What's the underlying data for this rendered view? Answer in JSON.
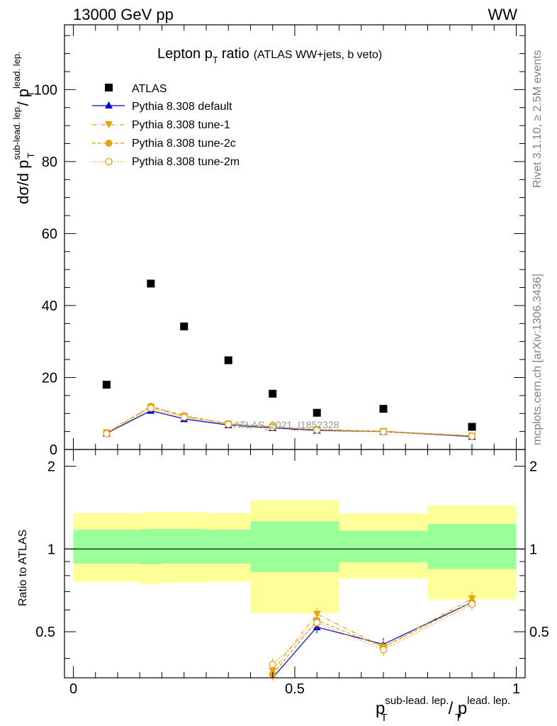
{
  "header": {
    "energy_label": "13000 GeV pp",
    "process_label": "WW"
  },
  "side_labels": {
    "rivet": "Rivet 3.1.10, ≥ 2.5M events",
    "mcplots": "mcplots.cern.ch [arXiv:1306.3436]"
  },
  "colors": {
    "atlas": "#000000",
    "default": "#0000cc",
    "tune_orange": "#e8a010",
    "band_outer": "#ffff99",
    "band_inner": "#99ff99",
    "watermark": "#999999"
  },
  "chart_data": [
    {
      "type": "scatter",
      "title": "Lepton p",
      "title_sub": "T",
      "title_suffix": "ratio",
      "title_note": "(ATLAS WW+jets, b veto)",
      "ylabel": "dσ/d p",
      "ylabel_sub": "T",
      "ylabel_sup": "sub-lead. lep.",
      "ylabel_tail": "/ p",
      "ylabel_tail_sub": "T",
      "ylabel_tail_sup": "lead. lep.",
      "xlim": [
        -0.02,
        1.02
      ],
      "ylim": [
        0,
        118
      ],
      "yticks": [
        0,
        20,
        40,
        60,
        80,
        100
      ],
      "grid": false,
      "legend_position": "top-left",
      "watermark": "ATLAS_2021_I1852328",
      "x": [
        0.075,
        0.175,
        0.25,
        0.35,
        0.45,
        0.55,
        0.7,
        0.9
      ],
      "series": [
        {
          "name": "ATLAS",
          "marker": "square",
          "values": [
            18.0,
            46.1,
            34.2,
            24.8,
            15.5,
            10.2,
            11.3,
            6.3
          ]
        },
        {
          "name": "Pythia 8.308 default",
          "marker": "triangle-up",
          "line": "solid",
          "values": [
            4.5,
            10.8,
            8.5,
            6.8,
            6.0,
            5.3,
            5.0,
            3.6
          ]
        },
        {
          "name": "Pythia 8.308 tune-1",
          "marker": "triangle-down",
          "line": "dashdot",
          "values": [
            4.7,
            11.8,
            9.2,
            7.1,
            6.3,
            5.6,
            5.1,
            3.8
          ]
        },
        {
          "name": "Pythia 8.308 tune-2c",
          "marker": "circle",
          "line": "dashed",
          "values": [
            4.6,
            12.0,
            9.4,
            7.2,
            6.4,
            5.5,
            5.0,
            3.8
          ]
        },
        {
          "name": "Pythia 8.308 tune-2m",
          "marker": "open-circle",
          "line": "dotted",
          "values": [
            4.4,
            11.5,
            9.0,
            7.0,
            6.2,
            5.4,
            4.9,
            3.7
          ]
        }
      ]
    },
    {
      "type": "scatter",
      "ylabel": "Ratio to ATLAS",
      "xlabel": "p",
      "xlabel_sub": "T",
      "xlabel_sup": "sub-lead. lep.",
      "xlabel_tail": "/ p",
      "xlabel_tail_sub": "T",
      "xlabel_tail_sup": "lead. lep.",
      "xlim": [
        -0.02,
        1.02
      ],
      "ylim": [
        0.34,
        2.3
      ],
      "yticks": [
        0.5,
        1,
        2
      ],
      "ytick_labels": [
        "0.5",
        "1",
        "2"
      ],
      "xticks": [
        0,
        0.5,
        1
      ],
      "xtick_labels": [
        "0",
        "0.5",
        "1"
      ],
      "bins": [
        [
          0.0,
          0.15
        ],
        [
          0.15,
          0.2
        ],
        [
          0.2,
          0.3
        ],
        [
          0.3,
          0.4
        ],
        [
          0.4,
          0.5
        ],
        [
          0.5,
          0.6
        ],
        [
          0.6,
          0.8
        ],
        [
          0.8,
          1.0
        ]
      ],
      "band_outer": [
        [
          0.76,
          1.35
        ],
        [
          0.745,
          1.36
        ],
        [
          0.755,
          1.36
        ],
        [
          0.76,
          1.35
        ],
        [
          0.585,
          1.5
        ],
        [
          0.585,
          1.5
        ],
        [
          0.78,
          1.345
        ],
        [
          0.655,
          1.44
        ]
      ],
      "band_inner": [
        [
          0.885,
          1.175
        ],
        [
          0.88,
          1.18
        ],
        [
          0.885,
          1.18
        ],
        [
          0.885,
          1.175
        ],
        [
          0.825,
          1.26
        ],
        [
          0.825,
          1.26
        ],
        [
          0.895,
          1.165
        ],
        [
          0.845,
          1.235
        ]
      ],
      "x": [
        0.45,
        0.55,
        0.7,
        0.9
      ],
      "series": [
        {
          "name": "Pythia 8.308 default",
          "values": [
            0.34,
            0.52,
            0.45,
            0.64
          ]
        },
        {
          "name": "Pythia 8.308 tune-1",
          "values": [
            0.36,
            0.58,
            0.44,
            0.66
          ]
        },
        {
          "name": "Pythia 8.308 tune-2c",
          "values": [
            0.35,
            0.55,
            0.44,
            0.64
          ]
        },
        {
          "name": "Pythia 8.308 tune-2m",
          "values": [
            0.38,
            0.54,
            0.43,
            0.63
          ]
        }
      ]
    }
  ]
}
